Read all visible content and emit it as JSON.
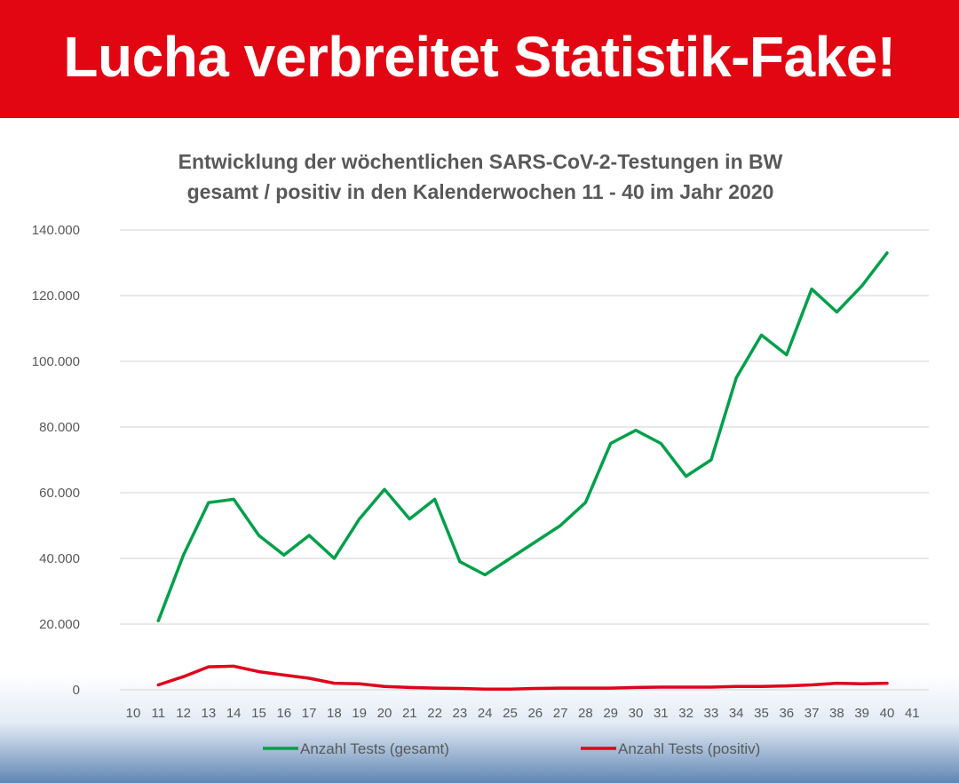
{
  "banner": {
    "headline": "Lucha verbreitet Statistik-Fake!",
    "color": "#e20613"
  },
  "chart_data": {
    "type": "line",
    "title": "Entwicklung der wöchentlichen SARS-CoV-2-Testungen in BW",
    "subtitle": "gesamt / positiv in den Kalenderwochen 11 - 40 im Jahr 2020",
    "x_categories": [
      "10",
      "11",
      "12",
      "13",
      "14",
      "15",
      "16",
      "17",
      "18",
      "19",
      "20",
      "21",
      "22",
      "23",
      "24",
      "25",
      "26",
      "27",
      "28",
      "29",
      "30",
      "31",
      "32",
      "33",
      "34",
      "35",
      "36",
      "37",
      "38",
      "39",
      "40",
      "41"
    ],
    "y_ticks": [
      "0",
      "20.000",
      "40.000",
      "60.000",
      "80.000",
      "100.000",
      "120.000",
      "140.000"
    ],
    "ylim": [
      0,
      140000
    ],
    "grid": true,
    "legend_position": "bottom",
    "series": [
      {
        "name": "Anzahl Tests (gesamt)",
        "color": "#00a04a",
        "x": [
          11,
          12,
          13,
          14,
          15,
          16,
          17,
          18,
          19,
          20,
          21,
          22,
          23,
          24,
          25,
          26,
          27,
          28,
          29,
          30,
          31,
          32,
          33,
          34,
          35,
          36,
          37,
          38,
          39,
          40
        ],
        "values": [
          21000,
          41000,
          57000,
          58000,
          47000,
          41000,
          47000,
          40000,
          52000,
          61000,
          52000,
          58000,
          39000,
          35000,
          40000,
          45000,
          50000,
          57000,
          75000,
          79000,
          75000,
          65000,
          70000,
          95000,
          108000,
          102000,
          122000,
          115000,
          123000,
          133000
        ]
      },
      {
        "name": "Anzahl Tests (positiv)",
        "color": "#e0001b",
        "x": [
          11,
          12,
          13,
          14,
          15,
          16,
          17,
          18,
          19,
          20,
          21,
          22,
          23,
          24,
          25,
          26,
          27,
          28,
          29,
          30,
          31,
          32,
          33,
          34,
          35,
          36,
          37,
          38,
          39,
          40
        ],
        "values": [
          1500,
          4000,
          7000,
          7200,
          5500,
          4500,
          3500,
          2000,
          1800,
          1000,
          700,
          500,
          400,
          200,
          200,
          400,
          500,
          500,
          500,
          700,
          800,
          800,
          800,
          1000,
          1000,
          1200,
          1500,
          2000,
          1800,
          2000
        ]
      }
    ]
  }
}
